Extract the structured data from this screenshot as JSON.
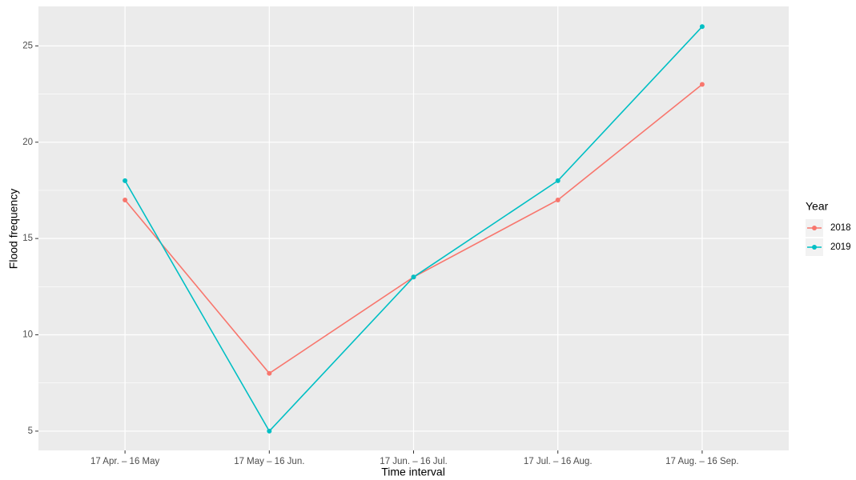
{
  "chart_data": {
    "type": "line",
    "x_label": "Time interval",
    "y_label": "Flood frequency",
    "categories": [
      "17 Apr. – 16 May",
      "17 May – 16 Jun.",
      "17 Jun. – 16 Jul.",
      "17 Jul. – 16 Aug.",
      "17 Aug. – 16 Sep."
    ],
    "series": [
      {
        "name": "2018",
        "color": "#F8766D",
        "values": [
          17,
          8,
          13,
          17,
          23
        ]
      },
      {
        "name": "2019",
        "color": "#00BFC4",
        "values": [
          18,
          5,
          13,
          18,
          26
        ]
      }
    ],
    "ylim": [
      4,
      27.05
    ],
    "yticks": [
      5,
      10,
      15,
      20,
      25
    ],
    "grid": true,
    "legend_title": "Year",
    "legend_position": "right"
  }
}
